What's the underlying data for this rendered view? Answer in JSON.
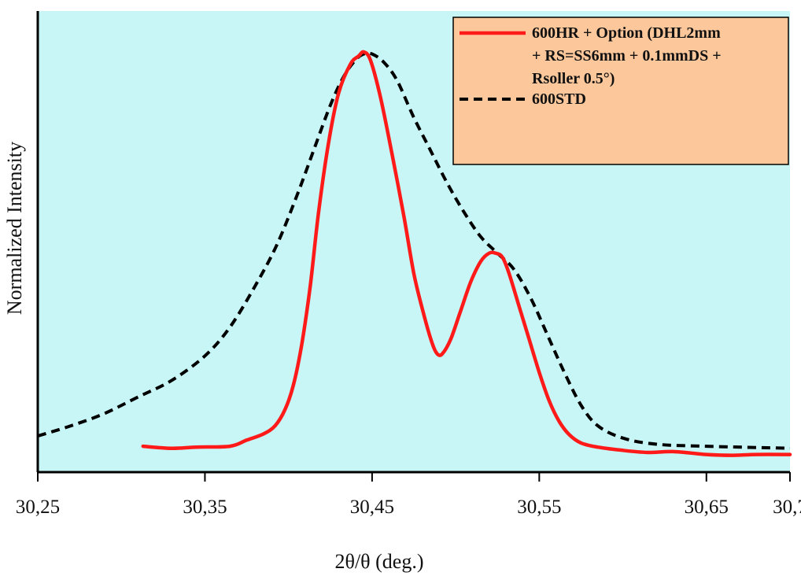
{
  "chart_data": {
    "type": "line",
    "title": "",
    "xlabel": "2θ/θ (deg.)",
    "ylabel": "Normalized Intensity",
    "xlim": [
      30.25,
      30.7
    ],
    "ylim": [
      0,
      1.0
    ],
    "x_ticks": [
      30.25,
      30.35,
      30.45,
      30.55,
      30.65,
      30.7
    ],
    "x_tick_labels": [
      "30,25",
      "30,35",
      "30,45",
      "30,55",
      "30,65",
      "30,7"
    ],
    "y_ticks_shown": false,
    "grid": false,
    "plot_background": "#c8f5f6",
    "legend": {
      "placement": "top-right",
      "background": "#fbc79b",
      "entries": [
        {
          "lines": [
            "600HR + Option (DHL2mm",
            "+ RS=SS6mm + 0.1mmDS +",
            "Rsoller 0.5°)"
          ],
          "series_index": 0
        },
        {
          "lines": [
            "600STD"
          ],
          "series_index": 1
        }
      ]
    },
    "series": [
      {
        "name": "600HR + Option (DHL2mm + RS=SS6mm + 0.1mmDS + Rsoller 0.5°)",
        "color": "#ff1a1a",
        "dash": "solid",
        "x": [
          30.313,
          30.33,
          30.345,
          30.365,
          30.375,
          30.385,
          30.392,
          30.398,
          30.403,
          30.408,
          30.413,
          30.418,
          30.424,
          30.43,
          30.437,
          30.442,
          30.445,
          30.449,
          30.455,
          30.462,
          30.469,
          30.475,
          30.481,
          30.486,
          30.489,
          30.492,
          30.497,
          30.503,
          30.509,
          30.515,
          30.52,
          30.524,
          30.528,
          30.532,
          30.538,
          30.544,
          30.55,
          30.556,
          30.562,
          30.568,
          30.575,
          30.585,
          30.6,
          30.615,
          30.63,
          30.65,
          30.665,
          30.68,
          30.7
        ],
        "y": [
          0.04,
          0.035,
          0.038,
          0.04,
          0.055,
          0.07,
          0.09,
          0.13,
          0.19,
          0.29,
          0.43,
          0.61,
          0.78,
          0.9,
          0.97,
          0.99,
          1.0,
          0.98,
          0.89,
          0.75,
          0.6,
          0.46,
          0.36,
          0.29,
          0.265,
          0.265,
          0.3,
          0.37,
          0.44,
          0.49,
          0.51,
          0.51,
          0.5,
          0.46,
          0.38,
          0.3,
          0.22,
          0.15,
          0.1,
          0.068,
          0.048,
          0.038,
          0.03,
          0.025,
          0.027,
          0.02,
          0.018,
          0.02,
          0.02
        ]
      },
      {
        "name": "600STD",
        "color": "#000000",
        "dash": "dashed",
        "x": [
          30.25,
          30.27,
          30.29,
          30.31,
          30.33,
          30.35,
          30.365,
          30.38,
          30.393,
          30.405,
          30.415,
          30.425,
          30.433,
          30.44,
          30.445,
          30.45,
          30.457,
          30.465,
          30.475,
          30.485,
          30.495,
          30.505,
          30.515,
          30.525,
          30.535,
          30.545,
          30.555,
          30.565,
          30.575,
          30.585,
          30.6,
          30.62,
          30.65,
          30.7
        ],
        "y": [
          0.065,
          0.09,
          0.12,
          0.16,
          0.2,
          0.26,
          0.33,
          0.43,
          0.53,
          0.65,
          0.76,
          0.87,
          0.94,
          0.98,
          0.995,
          0.995,
          0.975,
          0.93,
          0.84,
          0.76,
          0.68,
          0.61,
          0.55,
          0.51,
          0.47,
          0.4,
          0.31,
          0.22,
          0.14,
          0.09,
          0.06,
          0.045,
          0.04,
          0.035
        ]
      }
    ]
  }
}
